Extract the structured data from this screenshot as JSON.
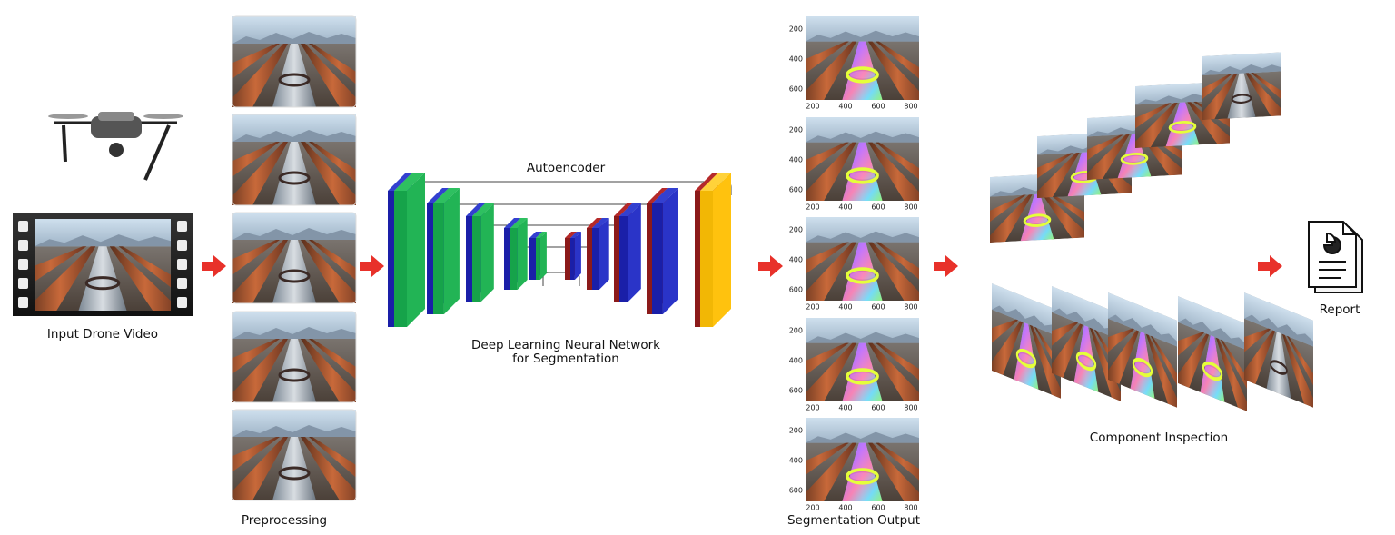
{
  "input": {
    "label": "Input Drone Video"
  },
  "preprocessing": {
    "label": "Preprocessing"
  },
  "network": {
    "title": "Autoencoder",
    "caption": [
      "Deep Learning Neural Network",
      "for Segmentation"
    ]
  },
  "segmentation": {
    "label": "Segmentation Output",
    "y_ticks": [
      200,
      400,
      600
    ],
    "x_ticks": [
      200,
      400,
      600,
      800
    ]
  },
  "inspection": {
    "label": "Component Inspection"
  },
  "report": {
    "label": "Report"
  }
}
